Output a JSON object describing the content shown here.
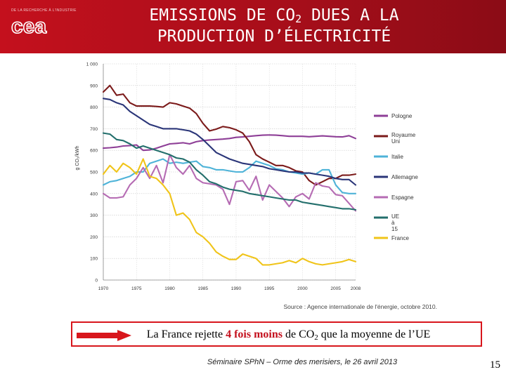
{
  "header": {
    "title_line1_pre": "EMISSIONS DE CO",
    "title_line1_sub": "2",
    "title_line1_post": " DUES A LA",
    "title_line2": "PRODUCTION D’ÉLECTRICITÉ",
    "logo_text": "cea",
    "logo_tagline": "DE LA RECHERCHE À L'INDUSTRIE"
  },
  "callout": {
    "part1": "La France rejette ",
    "emphasis": "4 fois moins",
    "part2": " de CO",
    "sub": "2",
    "part3": " que la moyenne de l’UE"
  },
  "footer": {
    "text": "Séminaire SPhN – Orme des merisiers, le 26 avril 2013",
    "page_number": "15"
  },
  "colors": {
    "header_red": "#c4101d",
    "callout_border": "#d8161c",
    "arrow_red": "#d8161c"
  },
  "chart_data": {
    "type": "line",
    "ylabel": "g CO₂/kWh",
    "ylim": [
      0,
      1000
    ],
    "xlim": [
      1970,
      2008
    ],
    "y_ticks": [
      "0",
      "100",
      "200",
      "300",
      "400",
      "500",
      "600",
      "700",
      "800",
      "900",
      "1 000"
    ],
    "x_ticks": [
      "1970",
      "1975",
      "1980",
      "1985",
      "1990",
      "1995",
      "2000",
      "2005",
      "2008"
    ],
    "source": "Source : Agence internationale de l'énergie, octobre 2010.",
    "grid": true,
    "legend_placement": "right",
    "years": [
      1970,
      1971,
      1972,
      1973,
      1974,
      1975,
      1976,
      1977,
      1978,
      1979,
      1980,
      1981,
      1982,
      1983,
      1984,
      1985,
      1986,
      1987,
      1988,
      1989,
      1990,
      1991,
      1992,
      1993,
      1994,
      1995,
      1996,
      1997,
      1998,
      1999,
      2000,
      2001,
      2002,
      2003,
      2004,
      2005,
      2006,
      2007,
      2008
    ],
    "series": [
      {
        "name": "Pologne",
        "color": "#8e3f97",
        "values": [
          610,
          612,
          615,
          620,
          622,
          625,
          600,
          602,
          610,
          620,
          630,
          632,
          635,
          630,
          640,
          645,
          648,
          650,
          652,
          655,
          660,
          662,
          665,
          668,
          670,
          671,
          670,
          668,
          665,
          665,
          665,
          663,
          665,
          667,
          665,
          663,
          662,
          668,
          655
        ]
      },
      {
        "name": "Royaume Uni",
        "color": "#7b1a1a",
        "values": [
          870,
          900,
          855,
          860,
          820,
          805,
          805,
          805,
          803,
          800,
          820,
          815,
          805,
          795,
          770,
          725,
          690,
          698,
          710,
          705,
          695,
          680,
          640,
          580,
          560,
          545,
          530,
          530,
          520,
          505,
          500,
          460,
          440,
          455,
          470,
          470,
          485,
          485,
          490
        ]
      },
      {
        "name": "Italie",
        "color": "#4eb3d8",
        "values": [
          440,
          455,
          460,
          470,
          480,
          500,
          500,
          540,
          550,
          560,
          540,
          545,
          540,
          545,
          550,
          525,
          520,
          510,
          510,
          505,
          500,
          500,
          520,
          550,
          540,
          530,
          515,
          510,
          500,
          495,
          490,
          495,
          490,
          510,
          510,
          440,
          405,
          400,
          400
        ]
      },
      {
        "name": "Allemagne",
        "color": "#2a3578",
        "values": [
          840,
          835,
          820,
          810,
          780,
          760,
          740,
          720,
          710,
          700,
          700,
          700,
          695,
          690,
          675,
          650,
          620,
          590,
          575,
          560,
          550,
          540,
          535,
          530,
          525,
          515,
          510,
          505,
          500,
          500,
          495,
          495,
          490,
          485,
          480,
          470,
          465,
          465,
          440
        ]
      },
      {
        "name": "Espagne",
        "color": "#b56bb3",
        "values": [
          400,
          380,
          380,
          385,
          440,
          470,
          520,
          470,
          530,
          450,
          580,
          520,
          490,
          530,
          470,
          450,
          445,
          440,
          420,
          350,
          455,
          460,
          415,
          480,
          370,
          440,
          410,
          380,
          340,
          385,
          400,
          375,
          450,
          435,
          430,
          395,
          390,
          355,
          320
        ]
      },
      {
        "name": "UE à 15",
        "color": "#236f6c",
        "values": [
          680,
          675,
          650,
          645,
          630,
          610,
          620,
          610,
          600,
          590,
          580,
          565,
          560,
          545,
          510,
          485,
          455,
          445,
          430,
          420,
          415,
          410,
          400,
          395,
          390,
          385,
          380,
          375,
          370,
          370,
          360,
          355,
          350,
          345,
          340,
          335,
          330,
          330,
          325
        ]
      },
      {
        "name": "France",
        "color": "#f0c419",
        "values": [
          490,
          530,
          500,
          540,
          520,
          490,
          560,
          480,
          470,
          440,
          400,
          300,
          310,
          280,
          220,
          200,
          170,
          130,
          110,
          95,
          95,
          120,
          110,
          100,
          70,
          70,
          75,
          80,
          90,
          80,
          100,
          85,
          75,
          70,
          75,
          80,
          85,
          95,
          85
        ]
      }
    ]
  }
}
